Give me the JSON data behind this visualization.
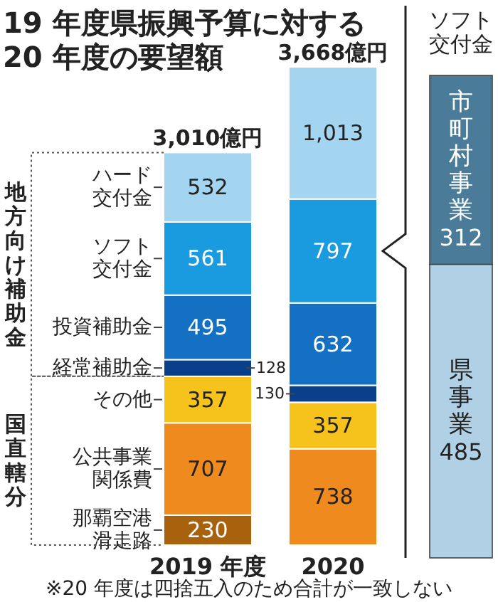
{
  "chart_data": [
    {
      "type": "bar",
      "title": "19 年度県振興予算に対する 20 年度の要望額",
      "categories": [
        "2019 年度",
        "2020"
      ],
      "stacked": true,
      "totals": [
        "3,010億円",
        "3,668億円"
      ],
      "series": [
        {
          "name": "那覇空港滑走路",
          "color": "#a8620e",
          "values": [
            230,
            null
          ],
          "value_labels": [
            "230",
            null
          ]
        },
        {
          "name": "公共事業関係費",
          "color": "#ee8a1e",
          "values": [
            707,
            738
          ],
          "value_labels": [
            "707",
            "738"
          ]
        },
        {
          "name": "その他",
          "color": "#f6c21c",
          "values": [
            357,
            357
          ],
          "value_labels": [
            "357",
            "357"
          ]
        },
        {
          "name": "経常補助金",
          "color": "#0a3f8c",
          "values": [
            128,
            130
          ],
          "value_labels": [
            "128",
            "130"
          ]
        },
        {
          "name": "投資補助金",
          "color": "#1470c2",
          "values": [
            495,
            632
          ],
          "value_labels": [
            "495",
            "632"
          ]
        },
        {
          "name": "ソフト交付金",
          "color": "#1a9be0",
          "values": [
            561,
            797
          ],
          "value_labels": [
            "561",
            "797"
          ]
        },
        {
          "name": "ハード交付金",
          "color": "#a3d4f0",
          "values": [
            532,
            1013
          ],
          "value_labels": [
            "532",
            "1,013"
          ]
        }
      ],
      "annotations": [
        "国直轄分",
        "地方向け補助金",
        "※20 年度は四捨五入のため合計が一致しない"
      ]
    },
    {
      "type": "bar",
      "title": "ソフト交付金",
      "categories": [
        null
      ],
      "stacked": true,
      "data_labels": true,
      "series": [
        {
          "name": "県事業",
          "color": "#b0d0e6",
          "values": [
            485
          ]
        },
        {
          "name": "市町村事業",
          "color": "#4a7b98",
          "values": [
            312
          ]
        }
      ]
    }
  ]
}
